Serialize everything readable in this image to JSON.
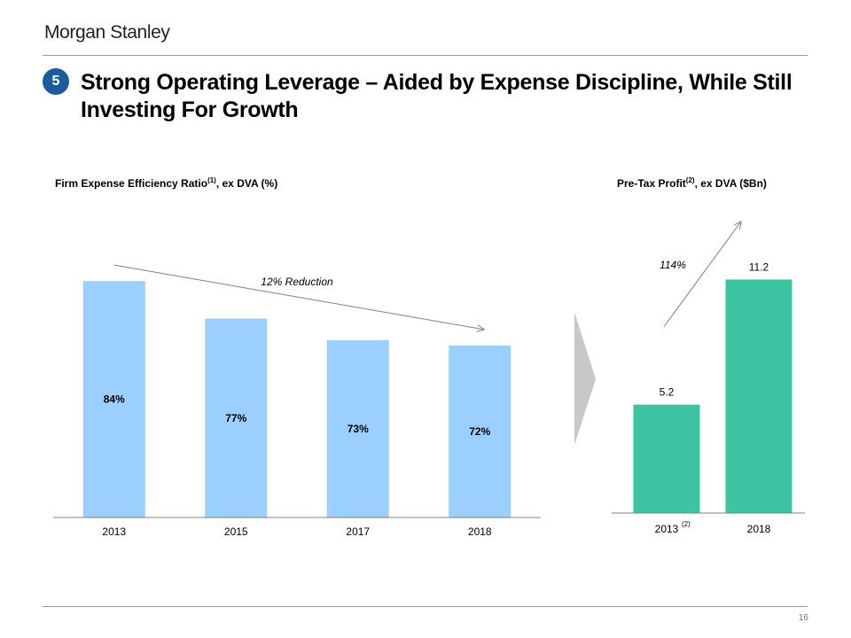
{
  "header": {
    "logo_text": "Morgan Stanley",
    "badge": "5",
    "title": "Strong Operating Leverage – Aided by Expense Discipline, While Still Investing For Growth"
  },
  "footer": {
    "page_number": "16"
  },
  "colors": {
    "left_bars": "#9bcfff",
    "right_bars": "#3cc4a2",
    "badge": "#1d5b9b",
    "connector": "#c8c8c8"
  },
  "chart_data": [
    {
      "type": "bar",
      "title": "Firm Expense Efficiency Ratio",
      "title_superscript": "(1)",
      "title_suffix": ", ex DVA (%)",
      "categories": [
        "2013",
        "2015",
        "2017",
        "2018"
      ],
      "values": [
        84,
        77,
        73,
        72
      ],
      "value_labels": [
        "84%",
        "77%",
        "73%",
        "72%"
      ],
      "ylim": [
        40,
        86
      ],
      "grid": false,
      "annotation": "12% Reduction"
    },
    {
      "type": "bar",
      "title": "Pre-Tax Profit",
      "title_superscript": "(2)",
      "title_suffix": ", ex DVA ($Bn)",
      "categories": [
        "2013",
        "2018"
      ],
      "category_superscripts": [
        "(2)",
        ""
      ],
      "values": [
        5.2,
        11.2
      ],
      "value_labels": [
        "5.2",
        "11.2"
      ],
      "ylim": [
        0,
        11.6
      ],
      "grid": false,
      "annotation": "114%"
    }
  ]
}
